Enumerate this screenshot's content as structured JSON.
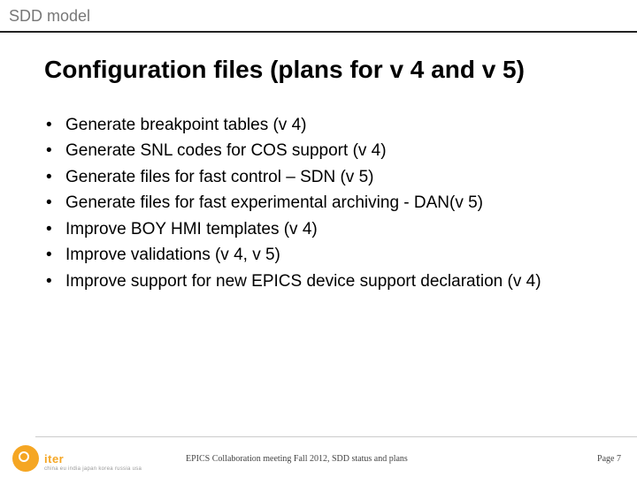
{
  "header": {
    "section": "SDD model"
  },
  "title": {
    "text": "Configuration files (plans for v 4 and v 5)"
  },
  "bullets": {
    "items": [
      "Generate breakpoint tables (v 4)",
      "Generate SNL codes for COS support (v 4)",
      "Generate files for fast control – SDN (v 5)",
      "Generate files for fast experimental archiving - DAN(v 5)",
      "Improve BOY HMI templates (v 4)",
      "Improve validations (v 4, v 5)",
      "Improve support for new EPICS device support declaration (v 4)"
    ]
  },
  "footer": {
    "logo_label": "iter",
    "countries": "china eu india japan korea russia usa",
    "center": "EPICS Collaboration meeting Fall 2012, SDD status and plans",
    "page": "Page 7"
  },
  "colors": {
    "accent": "#f5a623",
    "header_text": "#777777",
    "rule": "#222222",
    "body_text": "#000000"
  }
}
